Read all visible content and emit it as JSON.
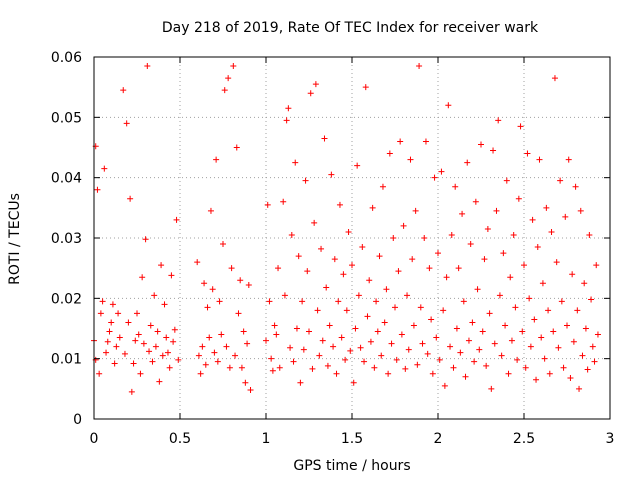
{
  "chart_data": {
    "type": "scatter",
    "title": "Day 218 of 2019, Rate Of TEC Index for receiver wark",
    "xlabel": "GPS time / hours",
    "ylabel": "ROTI / TECUs",
    "xlim": [
      0,
      3
    ],
    "ylim": [
      0,
      0.06
    ],
    "xticks": [
      0,
      0.5,
      1,
      1.5,
      2,
      2.5,
      3
    ],
    "xtick_labels": [
      "0",
      "0.5",
      "1",
      "1.5",
      "2",
      "2.5",
      "3"
    ],
    "yticks": [
      0,
      0.01,
      0.02,
      0.03,
      0.04,
      0.05,
      0.06
    ],
    "ytick_labels": [
      "0",
      "0.01",
      "0.02",
      "0.03",
      "0.04",
      "0.05",
      "0.06"
    ],
    "grid": true,
    "marker": "+",
    "color": "#ff0000",
    "series": [
      {
        "name": "ROTI",
        "points": [
          [
            0.0,
            0.013
          ],
          [
            0.01,
            0.0452
          ],
          [
            0.01,
            0.0098
          ],
          [
            0.02,
            0.038
          ],
          [
            0.03,
            0.0075
          ],
          [
            0.04,
            0.0175
          ],
          [
            0.05,
            0.0195
          ],
          [
            0.06,
            0.0415
          ],
          [
            0.07,
            0.011
          ],
          [
            0.08,
            0.0128
          ],
          [
            0.09,
            0.0145
          ],
          [
            0.1,
            0.016
          ],
          [
            0.11,
            0.019
          ],
          [
            0.12,
            0.0092
          ],
          [
            0.13,
            0.012
          ],
          [
            0.14,
            0.0175
          ],
          [
            0.15,
            0.0135
          ],
          [
            0.17,
            0.0545
          ],
          [
            0.18,
            0.0108
          ],
          [
            0.19,
            0.049
          ],
          [
            0.2,
            0.016
          ],
          [
            0.21,
            0.0365
          ],
          [
            0.22,
            0.0045
          ],
          [
            0.23,
            0.0092
          ],
          [
            0.24,
            0.013
          ],
          [
            0.25,
            0.0175
          ],
          [
            0.26,
            0.014
          ],
          [
            0.27,
            0.0075
          ],
          [
            0.28,
            0.0235
          ],
          [
            0.29,
            0.0125
          ],
          [
            0.3,
            0.0298
          ],
          [
            0.31,
            0.0585
          ],
          [
            0.32,
            0.0112
          ],
          [
            0.33,
            0.0155
          ],
          [
            0.34,
            0.0095
          ],
          [
            0.35,
            0.0205
          ],
          [
            0.36,
            0.012
          ],
          [
            0.37,
            0.0145
          ],
          [
            0.38,
            0.0062
          ],
          [
            0.39,
            0.0255
          ],
          [
            0.4,
            0.0105
          ],
          [
            0.41,
            0.019
          ],
          [
            0.42,
            0.0135
          ],
          [
            0.43,
            0.011
          ],
          [
            0.44,
            0.0085
          ],
          [
            0.45,
            0.0238
          ],
          [
            0.46,
            0.0128
          ],
          [
            0.47,
            0.0148
          ],
          [
            0.48,
            0.033
          ],
          [
            0.49,
            0.0098
          ],
          [
            0.6,
            0.026
          ],
          [
            0.61,
            0.0105
          ],
          [
            0.62,
            0.0075
          ],
          [
            0.63,
            0.012
          ],
          [
            0.64,
            0.0225
          ],
          [
            0.65,
            0.009
          ],
          [
            0.66,
            0.0185
          ],
          [
            0.67,
            0.0135
          ],
          [
            0.68,
            0.0345
          ],
          [
            0.69,
            0.0215
          ],
          [
            0.7,
            0.011
          ],
          [
            0.71,
            0.043
          ],
          [
            0.72,
            0.0095
          ],
          [
            0.73,
            0.0195
          ],
          [
            0.74,
            0.014
          ],
          [
            0.75,
            0.029
          ],
          [
            0.76,
            0.0545
          ],
          [
            0.77,
            0.012
          ],
          [
            0.78,
            0.0565
          ],
          [
            0.79,
            0.0085
          ],
          [
            0.8,
            0.025
          ],
          [
            0.81,
            0.0585
          ],
          [
            0.82,
            0.0105
          ],
          [
            0.83,
            0.045
          ],
          [
            0.84,
            0.0175
          ],
          [
            0.85,
            0.023
          ],
          [
            0.86,
            0.0085
          ],
          [
            0.87,
            0.0145
          ],
          [
            0.88,
            0.006
          ],
          [
            0.89,
            0.0125
          ],
          [
            0.9,
            0.0222
          ],
          [
            0.91,
            0.0048
          ],
          [
            1.0,
            0.013
          ],
          [
            1.01,
            0.0355
          ],
          [
            1.02,
            0.0195
          ],
          [
            1.03,
            0.01
          ],
          [
            1.04,
            0.008
          ],
          [
            1.05,
            0.0155
          ],
          [
            1.06,
            0.014
          ],
          [
            1.07,
            0.025
          ],
          [
            1.08,
            0.0085
          ],
          [
            1.1,
            0.036
          ],
          [
            1.11,
            0.0205
          ],
          [
            1.12,
            0.0495
          ],
          [
            1.13,
            0.0515
          ],
          [
            1.14,
            0.0118
          ],
          [
            1.15,
            0.0305
          ],
          [
            1.16,
            0.0095
          ],
          [
            1.17,
            0.0425
          ],
          [
            1.18,
            0.015
          ],
          [
            1.19,
            0.027
          ],
          [
            1.2,
            0.006
          ],
          [
            1.21,
            0.0195
          ],
          [
            1.22,
            0.0115
          ],
          [
            1.23,
            0.0395
          ],
          [
            1.24,
            0.0245
          ],
          [
            1.25,
            0.0145
          ],
          [
            1.26,
            0.054
          ],
          [
            1.27,
            0.0083
          ],
          [
            1.28,
            0.0325
          ],
          [
            1.29,
            0.0555
          ],
          [
            1.3,
            0.018
          ],
          [
            1.31,
            0.0105
          ],
          [
            1.32,
            0.0282
          ],
          [
            1.33,
            0.013
          ],
          [
            1.34,
            0.0465
          ],
          [
            1.35,
            0.0218
          ],
          [
            1.36,
            0.0088
          ],
          [
            1.37,
            0.0155
          ],
          [
            1.38,
            0.0405
          ],
          [
            1.39,
            0.012
          ],
          [
            1.4,
            0.0265
          ],
          [
            1.41,
            0.0075
          ],
          [
            1.42,
            0.0195
          ],
          [
            1.43,
            0.0355
          ],
          [
            1.44,
            0.0135
          ],
          [
            1.45,
            0.024
          ],
          [
            1.46,
            0.0098
          ],
          [
            1.47,
            0.018
          ],
          [
            1.48,
            0.031
          ],
          [
            1.49,
            0.0113
          ],
          [
            1.5,
            0.0255
          ],
          [
            1.51,
            0.006
          ],
          [
            1.52,
            0.015
          ],
          [
            1.53,
            0.042
          ],
          [
            1.54,
            0.0205
          ],
          [
            1.55,
            0.0118
          ],
          [
            1.56,
            0.0285
          ],
          [
            1.57,
            0.0095
          ],
          [
            1.58,
            0.055
          ],
          [
            1.59,
            0.017
          ],
          [
            1.6,
            0.023
          ],
          [
            1.61,
            0.0128
          ],
          [
            1.62,
            0.035
          ],
          [
            1.63,
            0.0085
          ],
          [
            1.64,
            0.0195
          ],
          [
            1.65,
            0.0145
          ],
          [
            1.66,
            0.027
          ],
          [
            1.67,
            0.0105
          ],
          [
            1.68,
            0.0385
          ],
          [
            1.69,
            0.016
          ],
          [
            1.7,
            0.0215
          ],
          [
            1.71,
            0.0075
          ],
          [
            1.72,
            0.044
          ],
          [
            1.73,
            0.0125
          ],
          [
            1.74,
            0.03
          ],
          [
            1.75,
            0.0185
          ],
          [
            1.76,
            0.0098
          ],
          [
            1.77,
            0.0245
          ],
          [
            1.78,
            0.046
          ],
          [
            1.79,
            0.014
          ],
          [
            1.8,
            0.032
          ],
          [
            1.81,
            0.0083
          ],
          [
            1.82,
            0.0205
          ],
          [
            1.83,
            0.0115
          ],
          [
            1.84,
            0.043
          ],
          [
            1.85,
            0.0265
          ],
          [
            1.86,
            0.0155
          ],
          [
            1.87,
            0.0345
          ],
          [
            1.88,
            0.009
          ],
          [
            1.89,
            0.0585
          ],
          [
            1.9,
            0.0185
          ],
          [
            1.91,
            0.0125
          ],
          [
            1.92,
            0.03
          ],
          [
            1.93,
            0.046
          ],
          [
            1.94,
            0.0108
          ],
          [
            1.95,
            0.025
          ],
          [
            1.96,
            0.0165
          ],
          [
            1.97,
            0.0075
          ],
          [
            1.98,
            0.04
          ],
          [
            1.99,
            0.0135
          ],
          [
            2.0,
            0.0275
          ],
          [
            2.01,
            0.0098
          ],
          [
            2.02,
            0.041
          ],
          [
            2.03,
            0.018
          ],
          [
            2.04,
            0.0055
          ],
          [
            2.05,
            0.0235
          ],
          [
            2.06,
            0.052
          ],
          [
            2.07,
            0.012
          ],
          [
            2.08,
            0.0305
          ],
          [
            2.09,
            0.0085
          ],
          [
            2.1,
            0.0385
          ],
          [
            2.11,
            0.015
          ],
          [
            2.12,
            0.025
          ],
          [
            2.13,
            0.011
          ],
          [
            2.14,
            0.034
          ],
          [
            2.15,
            0.0195
          ],
          [
            2.16,
            0.007
          ],
          [
            2.17,
            0.0425
          ],
          [
            2.18,
            0.013
          ],
          [
            2.19,
            0.029
          ],
          [
            2.2,
            0.016
          ],
          [
            2.21,
            0.0095
          ],
          [
            2.22,
            0.036
          ],
          [
            2.23,
            0.0215
          ],
          [
            2.24,
            0.0115
          ],
          [
            2.25,
            0.0455
          ],
          [
            2.26,
            0.0145
          ],
          [
            2.27,
            0.0265
          ],
          [
            2.28,
            0.0088
          ],
          [
            2.29,
            0.0315
          ],
          [
            2.3,
            0.0175
          ],
          [
            2.31,
            0.005
          ],
          [
            2.32,
            0.0445
          ],
          [
            2.33,
            0.0125
          ],
          [
            2.34,
            0.0345
          ],
          [
            2.35,
            0.0495
          ],
          [
            2.36,
            0.0205
          ],
          [
            2.37,
            0.0105
          ],
          [
            2.38,
            0.0275
          ],
          [
            2.39,
            0.0155
          ],
          [
            2.4,
            0.0395
          ],
          [
            2.41,
            0.0075
          ],
          [
            2.42,
            0.0235
          ],
          [
            2.43,
            0.013
          ],
          [
            2.44,
            0.0305
          ],
          [
            2.45,
            0.0185
          ],
          [
            2.46,
            0.0098
          ],
          [
            2.47,
            0.0365
          ],
          [
            2.48,
            0.0485
          ],
          [
            2.49,
            0.0145
          ],
          [
            2.5,
            0.0255
          ],
          [
            2.51,
            0.0085
          ],
          [
            2.52,
            0.044
          ],
          [
            2.53,
            0.02
          ],
          [
            2.54,
            0.012
          ],
          [
            2.55,
            0.033
          ],
          [
            2.56,
            0.0165
          ],
          [
            2.57,
            0.0065
          ],
          [
            2.58,
            0.0285
          ],
          [
            2.59,
            0.043
          ],
          [
            2.6,
            0.0135
          ],
          [
            2.61,
            0.0225
          ],
          [
            2.62,
            0.01
          ],
          [
            2.63,
            0.035
          ],
          [
            2.64,
            0.018
          ],
          [
            2.65,
            0.0075
          ],
          [
            2.66,
            0.031
          ],
          [
            2.67,
            0.0145
          ],
          [
            2.68,
            0.0565
          ],
          [
            2.69,
            0.026
          ],
          [
            2.7,
            0.0118
          ],
          [
            2.71,
            0.0395
          ],
          [
            2.72,
            0.0195
          ],
          [
            2.73,
            0.0085
          ],
          [
            2.74,
            0.0335
          ],
          [
            2.75,
            0.0155
          ],
          [
            2.76,
            0.043
          ],
          [
            2.77,
            0.0068
          ],
          [
            2.78,
            0.024
          ],
          [
            2.79,
            0.0128
          ],
          [
            2.8,
            0.0385
          ],
          [
            2.81,
            0.018
          ],
          [
            2.82,
            0.005
          ],
          [
            2.83,
            0.0345
          ],
          [
            2.84,
            0.0105
          ],
          [
            2.85,
            0.0225
          ],
          [
            2.86,
            0.015
          ],
          [
            2.87,
            0.0082
          ],
          [
            2.88,
            0.0305
          ],
          [
            2.89,
            0.0198
          ],
          [
            2.9,
            0.012
          ],
          [
            2.91,
            0.0095
          ],
          [
            2.92,
            0.0255
          ],
          [
            2.93,
            0.014
          ]
        ]
      }
    ]
  }
}
